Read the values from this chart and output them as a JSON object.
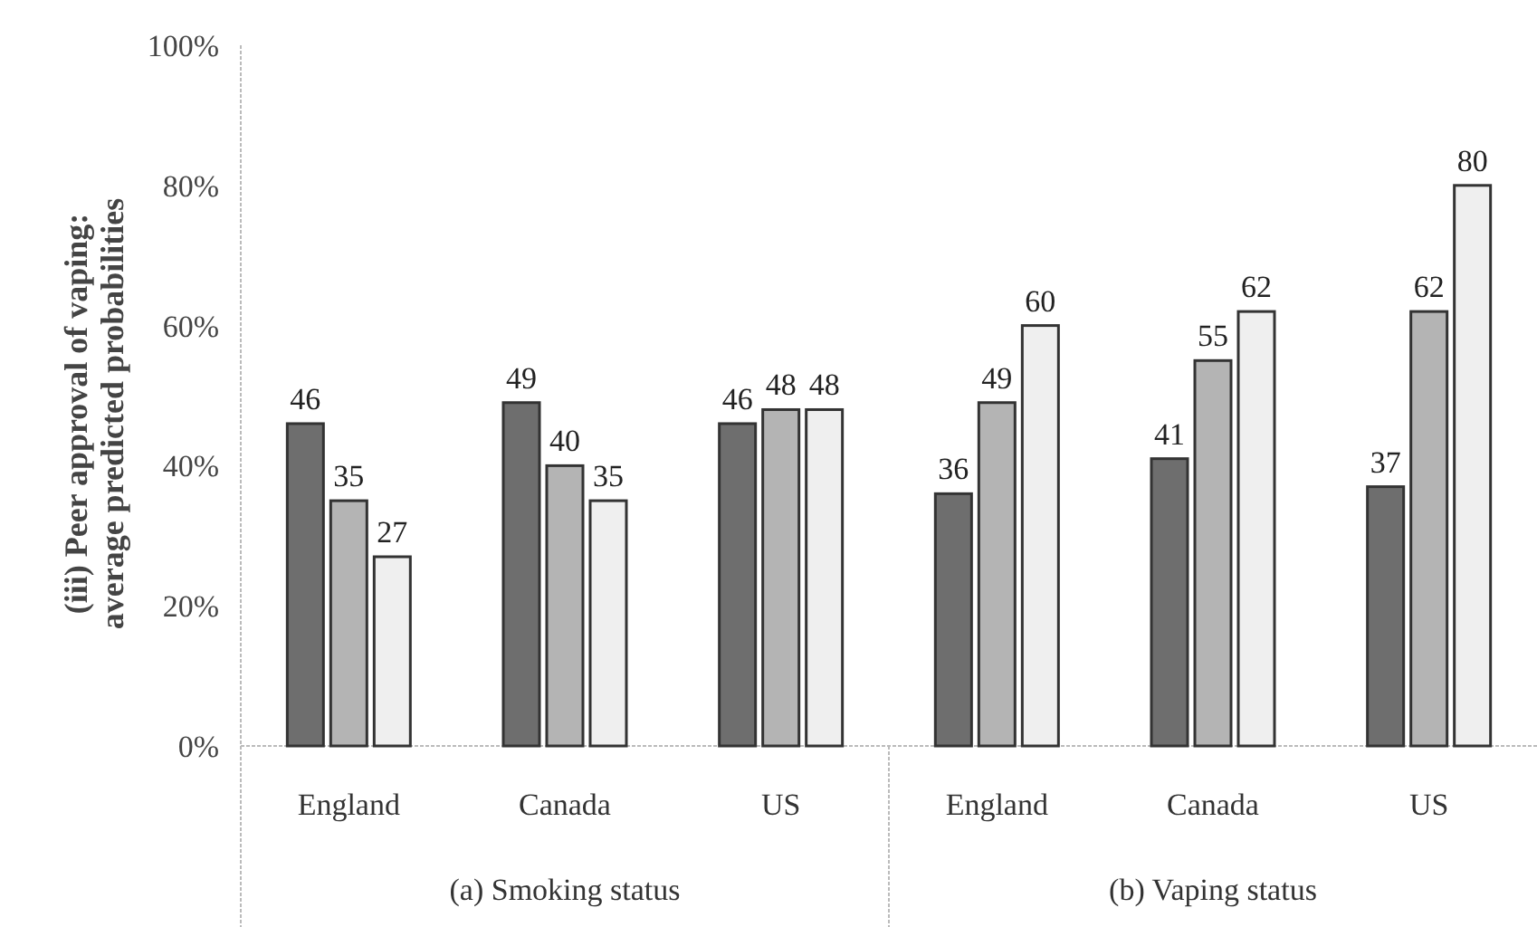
{
  "chart_data": {
    "type": "bar",
    "ylabel": "(iii) Peer approval of vaping: average predicted probabilities",
    "categories": [
      "England",
      "Canada",
      "US",
      "England",
      "Canada",
      "US"
    ],
    "series": [
      {
        "color": "#6e6e6e",
        "values": [
          46,
          49,
          46,
          36,
          41,
          37
        ]
      },
      {
        "color": "#b4b4b4",
        "values": [
          35,
          40,
          48,
          49,
          55,
          62
        ]
      },
      {
        "color": "#efefef",
        "values": [
          27,
          35,
          48,
          60,
          62,
          80
        ]
      }
    ],
    "ylim": [
      0,
      100
    ],
    "yticks": [
      {
        "value": 0,
        "label": "0%"
      },
      {
        "value": 20,
        "label": "20%"
      },
      {
        "value": 40,
        "label": "40%"
      },
      {
        "value": 60,
        "label": "60%"
      },
      {
        "value": 80,
        "label": "80%"
      },
      {
        "value": 100,
        "label": "100%"
      }
    ],
    "data_labels": true,
    "grid": false,
    "annotations": [
      "(a) Smoking status",
      "(b) Vaping status"
    ]
  }
}
